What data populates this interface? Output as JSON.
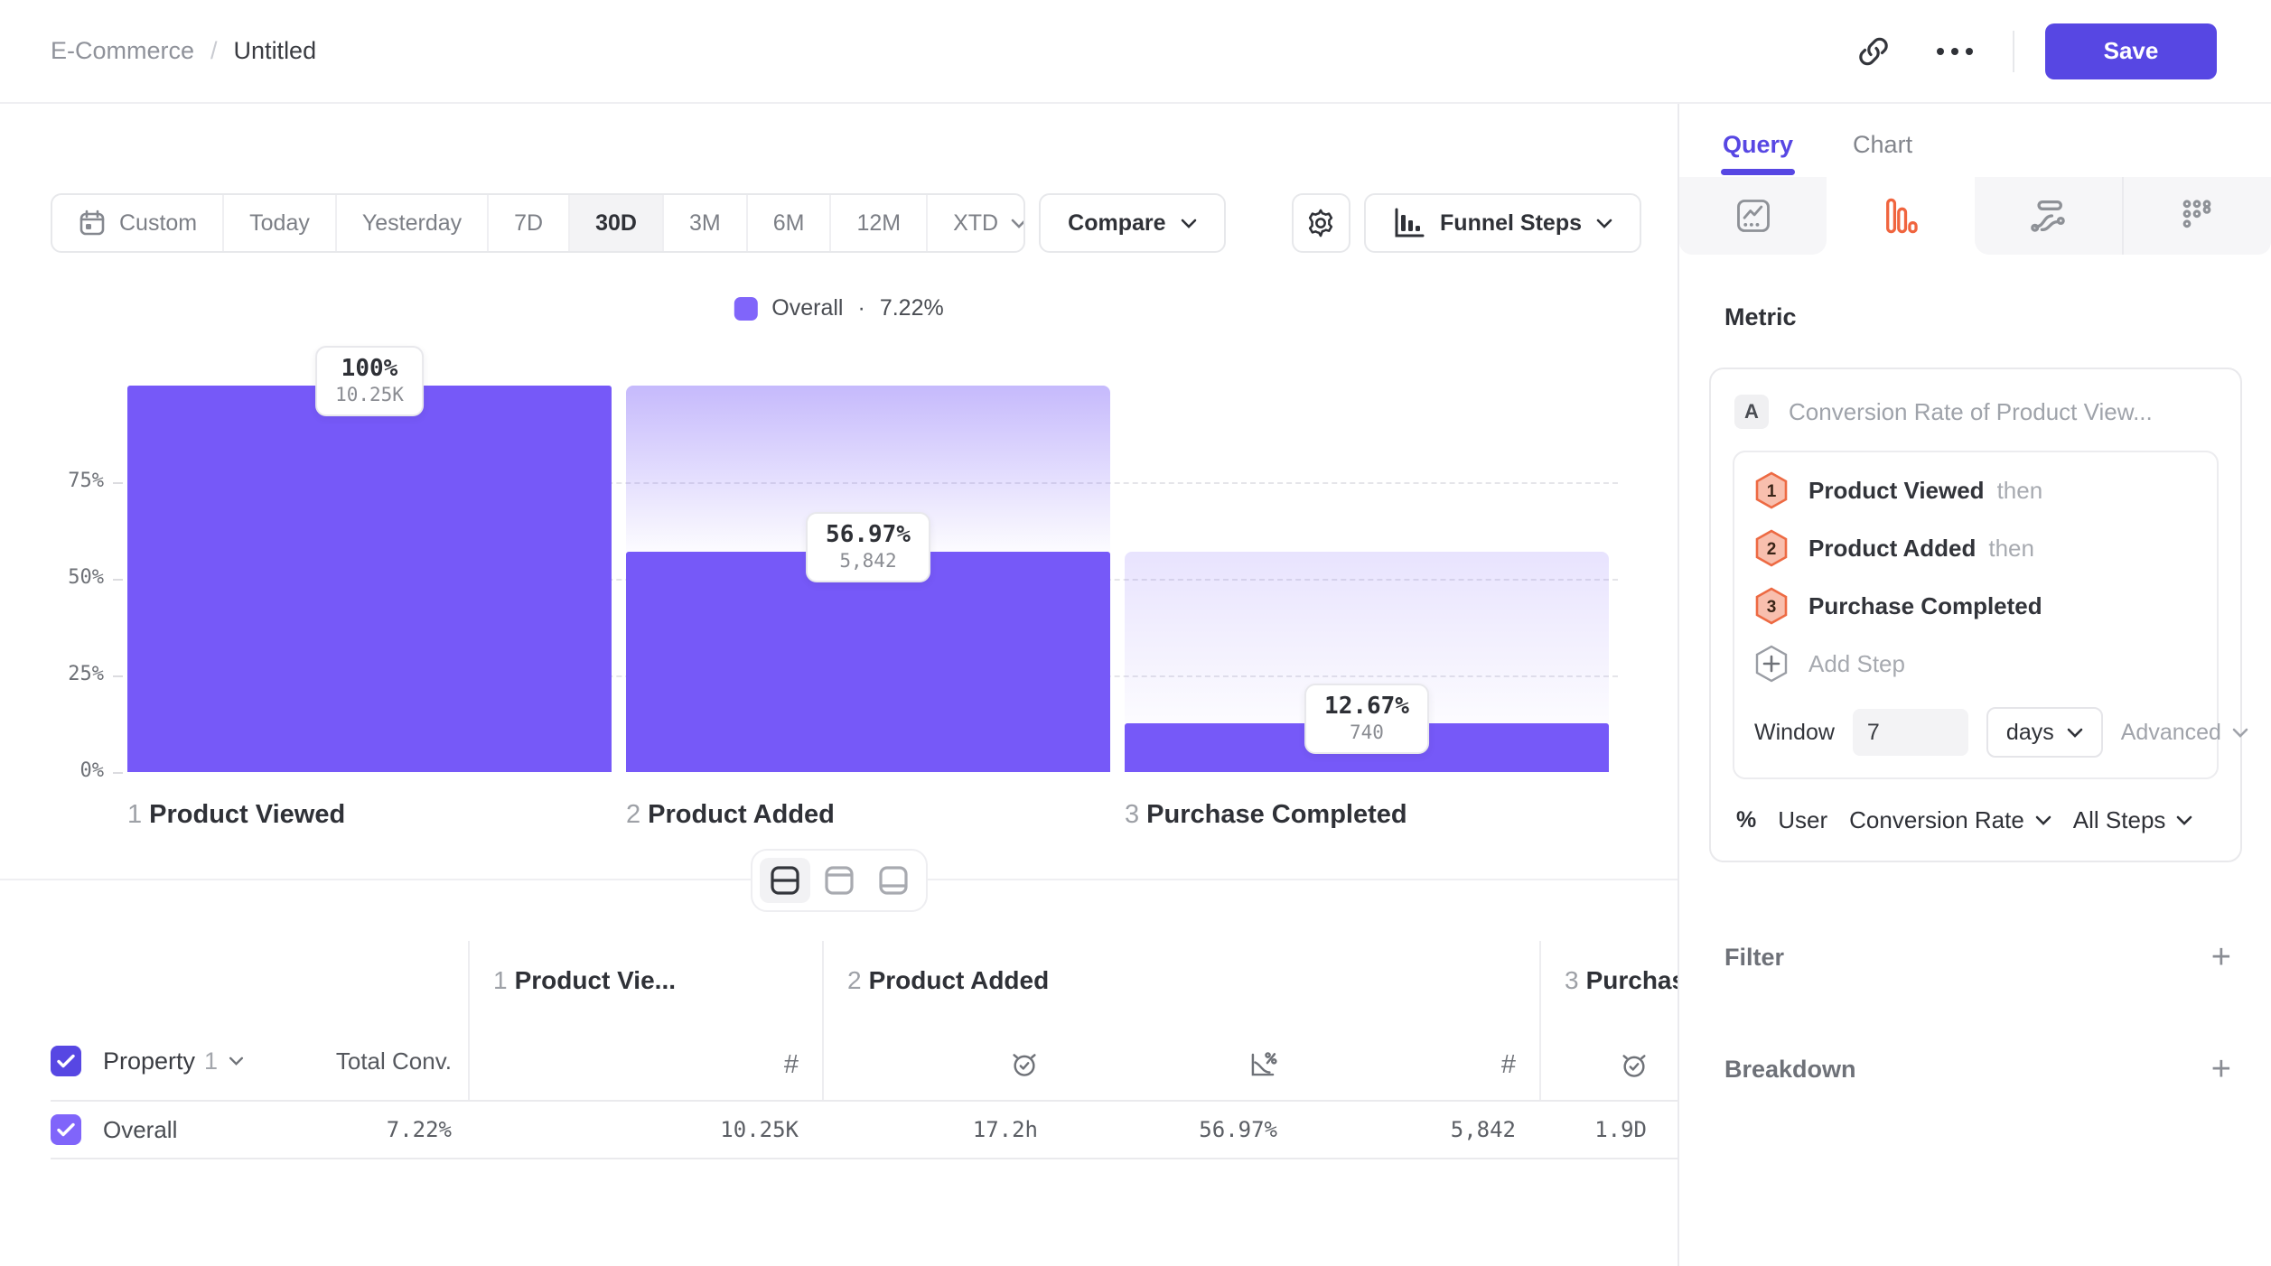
{
  "header": {
    "breadcrumb": {
      "parent": "E-Commerce",
      "separator": "/",
      "current": "Untitled"
    },
    "save_label": "Save"
  },
  "toolbar": {
    "date_tabs": [
      {
        "label": "Custom"
      },
      {
        "label": "Today"
      },
      {
        "label": "Yesterday"
      },
      {
        "label": "7D"
      },
      {
        "label": "30D"
      },
      {
        "label": "3M"
      },
      {
        "label": "6M"
      },
      {
        "label": "12M"
      },
      {
        "label": "XTD"
      }
    ],
    "selected_date_tab": "30D",
    "compare_label": "Compare",
    "view_selector_label": "Funnel Steps"
  },
  "legend": {
    "series": "Overall",
    "separator": "·",
    "value": "7.22%"
  },
  "chart_data": {
    "type": "bar",
    "subtype": "funnel-steps",
    "title": "Overall · 7.22%",
    "categories": [
      "Product Viewed",
      "Product Added",
      "Purchase Completed"
    ],
    "values": [
      100,
      56.97,
      12.67
    ],
    "counts": [
      10250,
      5842,
      740
    ],
    "ylim": [
      0,
      100
    ],
    "grid": "dashed-horizontal",
    "legend_position": "top-center",
    "bar_color": "#7659F8",
    "y_ticks": [
      {
        "label": "75%",
        "pct": 75
      },
      {
        "label": "50%",
        "pct": 50
      },
      {
        "label": "25%",
        "pct": 25
      },
      {
        "label": "0%",
        "pct": 0
      }
    ],
    "steps": [
      {
        "index": "1",
        "name": "Product Viewed",
        "pct": 100,
        "pct_label": "100%",
        "count_label": "10.25K"
      },
      {
        "index": "2",
        "name": "Product Added",
        "pct": 56.97,
        "pct_label": "56.97%",
        "count_label": "5,842"
      },
      {
        "index": "3",
        "name": "Purchase Completed",
        "pct": 12.67,
        "pct_label": "12.67%",
        "count_label": "740"
      }
    ]
  },
  "table": {
    "property_label": "Property",
    "property_index": "1",
    "total_conv_header": "Total Conv.",
    "groups": [
      {
        "num": "1",
        "name": "Product Vie..."
      },
      {
        "num": "2",
        "name": "Product Added"
      },
      {
        "num": "3",
        "name": "Purchase Completed"
      }
    ],
    "row": {
      "label": "Overall",
      "total_conv": "7.22%",
      "values": [
        "10.25K",
        "17.2h",
        "56.97%",
        "5,842",
        "1.9D"
      ]
    }
  },
  "panel": {
    "tabs": {
      "query": "Query",
      "chart": "Chart"
    },
    "metric_heading": "Metric",
    "metric": {
      "badge": "A",
      "title": "Conversion Rate of Product View...",
      "steps": [
        {
          "num": "1",
          "name": "Product Viewed",
          "suffix": "then"
        },
        {
          "num": "2",
          "name": "Product Added",
          "suffix": "then"
        },
        {
          "num": "3",
          "name": "Purchase Completed",
          "suffix": ""
        }
      ],
      "add_step_label": "Add Step",
      "window_label": "Window",
      "window_value": "7",
      "window_unit": "days",
      "advanced_label": "Advanced",
      "measure_pct": "%",
      "measure_entity": "User",
      "measure_type": "Conversion Rate",
      "measure_scope": "All Steps"
    },
    "filter_label": "Filter",
    "breakdown_label": "Breakdown"
  }
}
